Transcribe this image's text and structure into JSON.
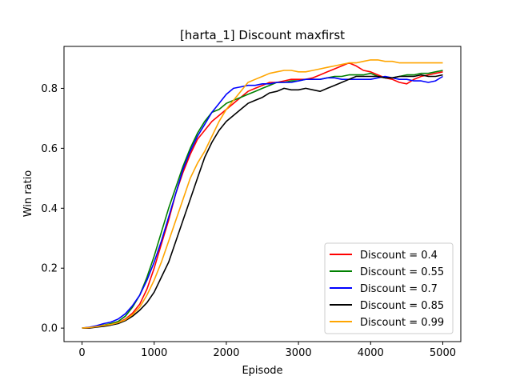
{
  "chart_data": {
    "type": "line",
    "title": "[harta_1] Discount  maxfirst",
    "xlabel": "Episode",
    "ylabel": "Win ratio",
    "xlim": [
      -250,
      5250
    ],
    "ylim": [
      -0.045,
      0.94
    ],
    "xticks": [
      0,
      1000,
      2000,
      3000,
      4000,
      5000
    ],
    "yticks": [
      0.0,
      0.2,
      0.4,
      0.6,
      0.8
    ],
    "ytick_labels": [
      "0.0",
      "0.2",
      "0.4",
      "0.6",
      "0.8"
    ],
    "grid": false,
    "legend_position": "lower right",
    "series": [
      {
        "name": "Discount = 0.4",
        "color": "#ff0000",
        "x": [
          0,
          100,
          200,
          300,
          400,
          500,
          600,
          700,
          800,
          900,
          1000,
          1100,
          1200,
          1300,
          1400,
          1500,
          1600,
          1700,
          1800,
          1900,
          2000,
          2100,
          2200,
          2300,
          2400,
          2500,
          2600,
          2700,
          2800,
          2900,
          3000,
          3100,
          3200,
          3300,
          3400,
          3500,
          3600,
          3700,
          3800,
          3900,
          4000,
          4100,
          4200,
          4300,
          4400,
          4500,
          4600,
          4700,
          4800,
          4900,
          5000
        ],
        "y": [
          0.0,
          0.0,
          0.005,
          0.01,
          0.012,
          0.018,
          0.03,
          0.05,
          0.08,
          0.13,
          0.2,
          0.28,
          0.36,
          0.45,
          0.52,
          0.58,
          0.63,
          0.66,
          0.69,
          0.71,
          0.73,
          0.75,
          0.77,
          0.79,
          0.8,
          0.81,
          0.82,
          0.82,
          0.825,
          0.83,
          0.83,
          0.83,
          0.835,
          0.845,
          0.855,
          0.865,
          0.875,
          0.885,
          0.875,
          0.86,
          0.855,
          0.845,
          0.835,
          0.83,
          0.82,
          0.815,
          0.83,
          0.84,
          0.845,
          0.85,
          0.855
        ]
      },
      {
        "name": "Discount = 0.55",
        "color": "#008000",
        "x": [
          0,
          100,
          200,
          300,
          400,
          500,
          600,
          700,
          800,
          900,
          1000,
          1100,
          1200,
          1300,
          1400,
          1500,
          1600,
          1700,
          1800,
          1900,
          2000,
          2100,
          2200,
          2300,
          2400,
          2500,
          2600,
          2700,
          2800,
          2900,
          3000,
          3100,
          3200,
          3300,
          3400,
          3500,
          3600,
          3700,
          3800,
          3900,
          4000,
          4100,
          4200,
          4300,
          4400,
          4500,
          4600,
          4700,
          4800,
          4900,
          5000
        ],
        "y": [
          0.0,
          0.002,
          0.006,
          0.01,
          0.015,
          0.022,
          0.04,
          0.07,
          0.11,
          0.17,
          0.24,
          0.32,
          0.4,
          0.47,
          0.54,
          0.6,
          0.65,
          0.69,
          0.72,
          0.73,
          0.75,
          0.76,
          0.77,
          0.78,
          0.79,
          0.8,
          0.81,
          0.82,
          0.82,
          0.825,
          0.825,
          0.83,
          0.83,
          0.83,
          0.835,
          0.84,
          0.84,
          0.845,
          0.845,
          0.845,
          0.85,
          0.84,
          0.835,
          0.835,
          0.84,
          0.845,
          0.845,
          0.85,
          0.85,
          0.855,
          0.86
        ]
      },
      {
        "name": "Discount = 0.7",
        "color": "#0000ff",
        "x": [
          0,
          100,
          200,
          300,
          400,
          500,
          600,
          700,
          800,
          900,
          1000,
          1100,
          1200,
          1300,
          1400,
          1500,
          1600,
          1700,
          1800,
          1900,
          2000,
          2100,
          2200,
          2300,
          2400,
          2500,
          2600,
          2700,
          2800,
          2900,
          3000,
          3100,
          3200,
          3300,
          3400,
          3500,
          3600,
          3700,
          3800,
          3900,
          4000,
          4100,
          4200,
          4300,
          4400,
          4500,
          4600,
          4700,
          4800,
          4900,
          5000
        ],
        "y": [
          0.0,
          0.003,
          0.008,
          0.015,
          0.02,
          0.03,
          0.048,
          0.075,
          0.11,
          0.16,
          0.22,
          0.29,
          0.37,
          0.45,
          0.53,
          0.59,
          0.64,
          0.68,
          0.72,
          0.75,
          0.78,
          0.8,
          0.805,
          0.81,
          0.81,
          0.815,
          0.815,
          0.82,
          0.82,
          0.82,
          0.825,
          0.83,
          0.83,
          0.83,
          0.835,
          0.835,
          0.83,
          0.83,
          0.83,
          0.83,
          0.83,
          0.835,
          0.84,
          0.835,
          0.83,
          0.83,
          0.825,
          0.825,
          0.82,
          0.825,
          0.84
        ]
      },
      {
        "name": "Discount = 0.85",
        "color": "#000000",
        "x": [
          0,
          100,
          200,
          300,
          400,
          500,
          600,
          700,
          800,
          900,
          1000,
          1100,
          1200,
          1300,
          1400,
          1500,
          1600,
          1700,
          1800,
          1900,
          2000,
          2100,
          2200,
          2300,
          2400,
          2500,
          2600,
          2700,
          2800,
          2900,
          3000,
          3100,
          3200,
          3300,
          3400,
          3500,
          3600,
          3700,
          3800,
          3900,
          4000,
          4100,
          4200,
          4300,
          4400,
          4500,
          4600,
          4700,
          4800,
          4900,
          5000
        ],
        "y": [
          0.0,
          0.0,
          0.003,
          0.006,
          0.01,
          0.015,
          0.025,
          0.04,
          0.06,
          0.085,
          0.12,
          0.17,
          0.22,
          0.29,
          0.36,
          0.43,
          0.5,
          0.57,
          0.62,
          0.66,
          0.69,
          0.71,
          0.73,
          0.75,
          0.76,
          0.77,
          0.785,
          0.79,
          0.8,
          0.795,
          0.795,
          0.8,
          0.795,
          0.79,
          0.8,
          0.81,
          0.82,
          0.83,
          0.84,
          0.84,
          0.84,
          0.84,
          0.835,
          0.835,
          0.84,
          0.84,
          0.84,
          0.845,
          0.84,
          0.84,
          0.845
        ]
      },
      {
        "name": "Discount = 0.99",
        "color": "#ffa500",
        "x": [
          0,
          100,
          200,
          300,
          400,
          500,
          600,
          700,
          800,
          900,
          1000,
          1100,
          1200,
          1300,
          1400,
          1500,
          1600,
          1700,
          1800,
          1900,
          2000,
          2100,
          2200,
          2300,
          2400,
          2500,
          2600,
          2700,
          2800,
          2900,
          3000,
          3100,
          3200,
          3300,
          3400,
          3500,
          3600,
          3700,
          3800,
          3900,
          4000,
          4100,
          4200,
          4300,
          4400,
          4500,
          4600,
          4700,
          4800,
          4900,
          5000
        ],
        "y": [
          0.0,
          0.002,
          0.005,
          0.009,
          0.012,
          0.018,
          0.028,
          0.045,
          0.07,
          0.11,
          0.16,
          0.22,
          0.29,
          0.36,
          0.43,
          0.5,
          0.55,
          0.59,
          0.64,
          0.69,
          0.73,
          0.76,
          0.79,
          0.82,
          0.83,
          0.84,
          0.85,
          0.855,
          0.86,
          0.86,
          0.855,
          0.855,
          0.86,
          0.865,
          0.87,
          0.875,
          0.88,
          0.885,
          0.885,
          0.89,
          0.895,
          0.895,
          0.89,
          0.89,
          0.885,
          0.885,
          0.885,
          0.885,
          0.885,
          0.885,
          0.885
        ]
      }
    ]
  }
}
